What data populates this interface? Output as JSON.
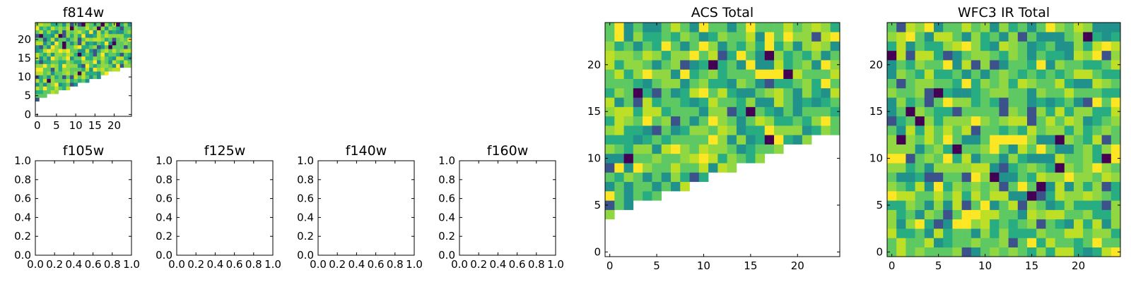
{
  "figure": {
    "colormap": "viridis",
    "panel_frame_color": "#000000"
  },
  "chart_data": [
    {
      "id": "f814w",
      "type": "heatmap",
      "title": "f814w",
      "grid": false,
      "xlim": [
        -0.5,
        24.5
      ],
      "ylim": [
        -0.5,
        24.5
      ],
      "xticks": [
        0,
        5,
        10,
        15,
        20
      ],
      "yticks": [
        0,
        5,
        10,
        15,
        20
      ],
      "xtick_labels": [
        "0",
        "5",
        "10",
        "15",
        "20"
      ],
      "ytick_labels": [
        "0",
        "5",
        "10",
        "15",
        "20"
      ],
      "mask_rule": "cells below a diagonal from (x=0, y=4) to (x=24, y=13) are empty",
      "seed": 814
    },
    {
      "id": "f105w",
      "type": "heatmap",
      "title": "f105w",
      "empty": true,
      "xlim": [
        0,
        1
      ],
      "ylim": [
        0,
        1
      ],
      "xtick_labels": [
        "0.0",
        "0.2",
        "0.4",
        "0.6",
        "0.8",
        "1.0"
      ],
      "ytick_labels": [
        "0.0",
        "0.2",
        "0.4",
        "0.6",
        "0.8",
        "1.0"
      ]
    },
    {
      "id": "f125w",
      "type": "heatmap",
      "title": "f125w",
      "empty": true,
      "xlim": [
        0,
        1
      ],
      "ylim": [
        0,
        1
      ],
      "xtick_labels": [
        "0.0",
        "0.2",
        "0.4",
        "0.6",
        "0.8",
        "1.0"
      ],
      "ytick_labels": [
        "0.0",
        "0.2",
        "0.4",
        "0.6",
        "0.8",
        "1.0"
      ]
    },
    {
      "id": "f140w",
      "type": "heatmap",
      "title": "f140w",
      "empty": true,
      "xlim": [
        0,
        1
      ],
      "ylim": [
        0,
        1
      ],
      "xtick_labels": [
        "0.0",
        "0.2",
        "0.4",
        "0.6",
        "0.8",
        "1.0"
      ],
      "ytick_labels": [
        "0.0",
        "0.2",
        "0.4",
        "0.6",
        "0.8",
        "1.0"
      ]
    },
    {
      "id": "f160w",
      "type": "heatmap",
      "title": "f160w",
      "empty": true,
      "xlim": [
        0,
        1
      ],
      "ylim": [
        0,
        1
      ],
      "xtick_labels": [
        "0.0",
        "0.2",
        "0.4",
        "0.6",
        "0.8",
        "1.0"
      ],
      "ytick_labels": [
        "0.0",
        "0.2",
        "0.4",
        "0.6",
        "0.8",
        "1.0"
      ]
    },
    {
      "id": "acs-total",
      "type": "heatmap",
      "title": "ACS Total",
      "grid": false,
      "xlim": [
        -0.5,
        24.5
      ],
      "ylim": [
        -0.5,
        24.5
      ],
      "xticks": [
        0,
        5,
        10,
        15,
        20
      ],
      "yticks": [
        0,
        5,
        10,
        15,
        20
      ],
      "xtick_labels": [
        "0",
        "5",
        "10",
        "15",
        "20"
      ],
      "ytick_labels": [
        "0",
        "5",
        "10",
        "15",
        "20"
      ],
      "mask_rule": "cells below a diagonal from (x=0, y=4) to (x=24, y=13) are empty",
      "seed": 1814
    },
    {
      "id": "wfc3-ir-total",
      "type": "heatmap",
      "title": "WFC3 IR Total",
      "grid": false,
      "xlim": [
        -0.5,
        24.5
      ],
      "ylim": [
        -0.5,
        24.5
      ],
      "xticks": [
        0,
        5,
        10,
        15,
        20
      ],
      "yticks": [
        0,
        5,
        10,
        15,
        20
      ],
      "xtick_labels": [
        "0",
        "5",
        "10",
        "15",
        "20"
      ],
      "ytick_labels": [
        "0",
        "5",
        "10",
        "15",
        "20"
      ],
      "mask_rule": "none",
      "seed": 3160
    }
  ]
}
